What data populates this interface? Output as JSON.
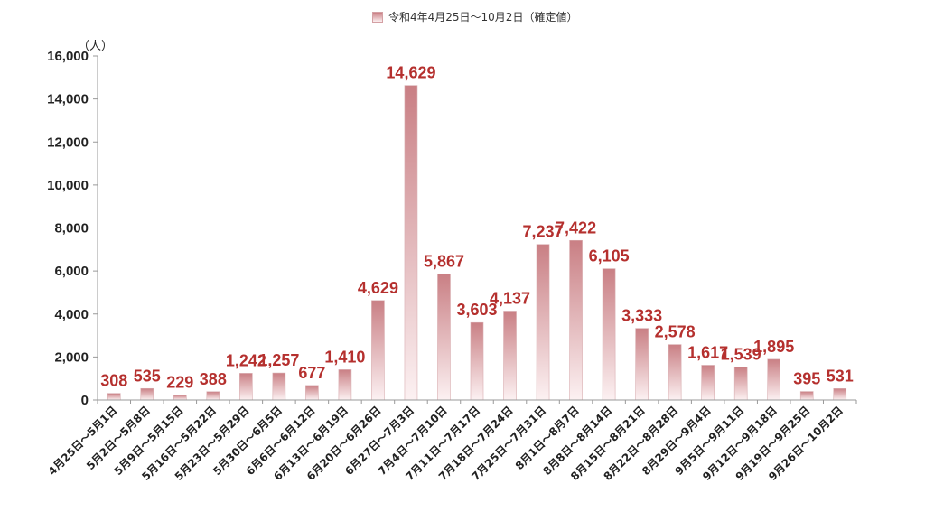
{
  "chart_data": {
    "type": "bar",
    "legend": {
      "label": "令和4年4月25日～10月2日（確定値）",
      "position": "top-center"
    },
    "ylabel_unit": "（人）",
    "ylim": [
      0,
      16000
    ],
    "yticks": [
      0,
      2000,
      4000,
      6000,
      8000,
      10000,
      12000,
      14000,
      16000
    ],
    "ytick_labels": [
      "0",
      "2,000",
      "4,000",
      "6,000",
      "8,000",
      "10,000",
      "12,000",
      "14,000",
      "16,000"
    ],
    "grid": false,
    "categories": [
      "4月25日～5月1日",
      "5月2日～5月8日",
      "5月9日～5月15日",
      "5月16日～5月22日",
      "5月23日～5月29日",
      "5月30日～6月5日",
      "6月6日～6月12日",
      "6月13日～6月19日",
      "6月20日～6月26日",
      "6月27日～7月3日",
      "7月4日～7月10日",
      "7月11日～7月17日",
      "7月18日～7月24日",
      "7月25日～7月31日",
      "8月1日～8月7日",
      "8月8日～8月14日",
      "8月15日～8月21日",
      "8月22日～8月28日",
      "8月29日～9月4日",
      "9月5日～9月11日",
      "9月12日～9月18日",
      "9月19日～9月25日",
      "9月26日～10月2日"
    ],
    "values": [
      308,
      535,
      229,
      388,
      1242,
      1257,
      677,
      1410,
      4629,
      14629,
      5867,
      3603,
      4137,
      7237,
      7422,
      6105,
      3333,
      2578,
      1617,
      1539,
      1895,
      395,
      531
    ],
    "value_labels": [
      "308",
      "535",
      "229",
      "388",
      "1,242",
      "1,257",
      "677",
      "1,410",
      "4,629",
      "14,629",
      "5,867",
      "3,603",
      "4,137",
      "7,237",
      "7,422",
      "6,105",
      "3,333",
      "2,578",
      "1,617",
      "1,539",
      "1,895",
      "395",
      "531"
    ],
    "colors": {
      "bar_top": "#c97f84",
      "bar_bottom": "#fcf1f2",
      "label": "#b5302e",
      "axis": "#999999"
    }
  }
}
